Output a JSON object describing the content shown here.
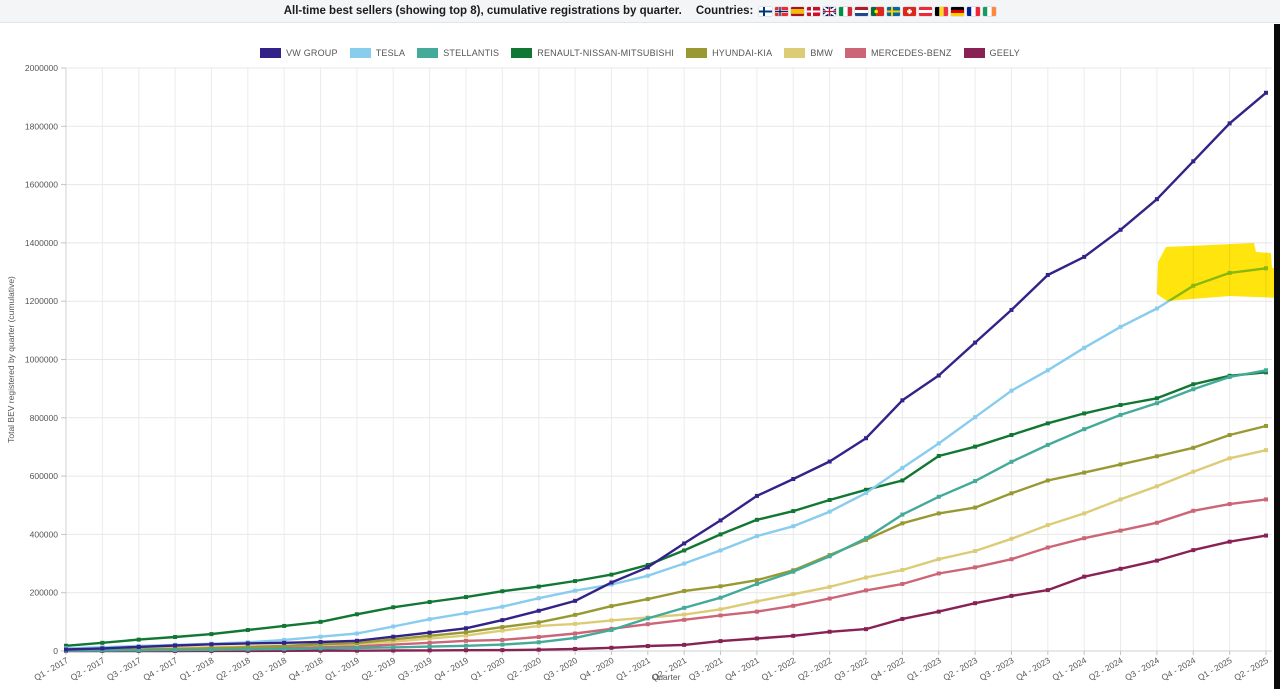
{
  "title_bar": {
    "title": "All-time best sellers (showing top 8), cumulative registrations by quarter.",
    "countries_label": "Countries:",
    "flags": [
      "finland",
      "norway",
      "spain",
      "denmark",
      "united-kingdom",
      "italy",
      "netherlands",
      "portugal",
      "sweden",
      "switzerland",
      "austria",
      "belgium",
      "germany",
      "france",
      "ireland"
    ]
  },
  "chart_data": {
    "type": "line",
    "title": "",
    "xlabel": "Quarter",
    "ylabel": "Total BEV registered by quarter (cumulative)",
    "ylim": [
      0,
      2000000
    ],
    "ytick_step": 200000,
    "grid": true,
    "legend_position": "top-center",
    "x": [
      "Q1 - 2017",
      "Q2 - 2017",
      "Q3 - 2017",
      "Q4 - 2017",
      "Q1 - 2018",
      "Q2 - 2018",
      "Q3 - 2018",
      "Q4 - 2018",
      "Q1 - 2019",
      "Q2 - 2019",
      "Q3 - 2019",
      "Q4 - 2019",
      "Q1 - 2020",
      "Q2 - 2020",
      "Q3 - 2020",
      "Q4 - 2020",
      "Q1 - 2021",
      "Q2 - 2021",
      "Q3 - 2021",
      "Q4 - 2021",
      "Q1 - 2022",
      "Q2 - 2022",
      "Q3 - 2022",
      "Q4 - 2022",
      "Q1 - 2023",
      "Q2 - 2023",
      "Q3 - 2023",
      "Q4 - 2023",
      "Q1 - 2024",
      "Q2 - 2024",
      "Q3 - 2024",
      "Q4 - 2024",
      "Q1 - 2025",
      "Q2 - 2025"
    ],
    "series": [
      {
        "name": "VW GROUP",
        "color": "#332288",
        "values": [
          5000,
          9000,
          14000,
          19000,
          23000,
          26000,
          28000,
          31000,
          35000,
          49000,
          63000,
          78000,
          106000,
          138000,
          172000,
          235000,
          287000,
          369000,
          448000,
          532000,
          590000,
          650000,
          730000,
          860000,
          945000,
          1058000,
          1170000,
          1290000,
          1352000,
          1445000,
          1550000,
          1680000,
          1810000,
          1915000
        ]
      },
      {
        "name": "TESLA",
        "color": "#88CCEE",
        "values": [
          9000,
          13000,
          17000,
          21000,
          25000,
          30000,
          38000,
          49000,
          60000,
          84000,
          109000,
          130000,
          152000,
          181000,
          207000,
          228000,
          258000,
          300000,
          345000,
          394000,
          428000,
          478000,
          542000,
          628000,
          712000,
          802000,
          893000,
          963000,
          1040000,
          1112000,
          1175000,
          1253000,
          1297000,
          1313000
        ]
      },
      {
        "name": "STELLANTIS",
        "color": "#44AA99",
        "values": [
          1000,
          1600,
          2300,
          3200,
          4200,
          5500,
          7000,
          9000,
          10500,
          12500,
          15000,
          18000,
          22000,
          30000,
          45000,
          72000,
          112000,
          148000,
          183000,
          230000,
          272000,
          325000,
          387000,
          468000,
          529000,
          583000,
          649000,
          707000,
          761000,
          810000,
          850000,
          898000,
          940000,
          963000
        ]
      },
      {
        "name": "RENAULT-NISSAN-MITSUBISHI",
        "color": "#117733",
        "values": [
          18000,
          28000,
          39000,
          48000,
          58000,
          72000,
          86000,
          100000,
          126000,
          150000,
          168000,
          185000,
          205000,
          221000,
          240000,
          262000,
          295000,
          345000,
          400000,
          450000,
          480000,
          518000,
          553000,
          585000,
          669000,
          701000,
          741000,
          781000,
          815000,
          844000,
          867000,
          915000,
          944000,
          956000
        ]
      },
      {
        "name": "HYUNDAI-KIA",
        "color": "#999933",
        "values": [
          2000,
          3500,
          5000,
          7000,
          9500,
          13000,
          17000,
          23000,
          27000,
          40000,
          52000,
          64000,
          82000,
          98000,
          124000,
          154000,
          178000,
          206000,
          222000,
          243000,
          277000,
          329000,
          381000,
          438000,
          472000,
          492000,
          541000,
          585000,
          612000,
          640000,
          668000,
          697000,
          741000,
          772000
        ]
      },
      {
        "name": "BMW",
        "color": "#DDCC77",
        "values": [
          4000,
          6000,
          8500,
          11000,
          13000,
          15500,
          18000,
          21000,
          23500,
          32000,
          43000,
          53000,
          70000,
          86000,
          93000,
          105000,
          115000,
          125000,
          143000,
          170000,
          195000,
          220000,
          252000,
          278000,
          315000,
          343000,
          385000,
          432000,
          472000,
          520000,
          565000,
          615000,
          661000,
          689000
        ]
      },
      {
        "name": "MERCEDES-BENZ",
        "color": "#CC6677",
        "values": [
          1500,
          2500,
          3500,
          5000,
          6500,
          8500,
          10500,
          13500,
          16000,
          22000,
          28000,
          35000,
          38000,
          48000,
          60000,
          76000,
          92000,
          107000,
          122000,
          135000,
          155000,
          180000,
          208000,
          230000,
          266000,
          287000,
          315000,
          355000,
          387000,
          413000,
          440000,
          481000,
          504000,
          520000
        ]
      },
      {
        "name": "GEELY",
        "color": "#882255",
        "values": [
          0,
          0,
          0,
          100,
          200,
          400,
          600,
          900,
          1200,
          1600,
          2100,
          2700,
          3000,
          4500,
          7000,
          11000,
          17000,
          21000,
          34000,
          43000,
          52000,
          66000,
          75000,
          110000,
          135000,
          164000,
          189000,
          209000,
          255000,
          282000,
          310000,
          346000,
          375000,
          396000
        ]
      }
    ]
  },
  "annotations": {
    "highlight": {
      "color": "#ffe400",
      "note": "highlighter mark over TESLA line Q4-2024 to Q2-2025"
    },
    "right_edge_bar_color": "#0a0a0a"
  }
}
